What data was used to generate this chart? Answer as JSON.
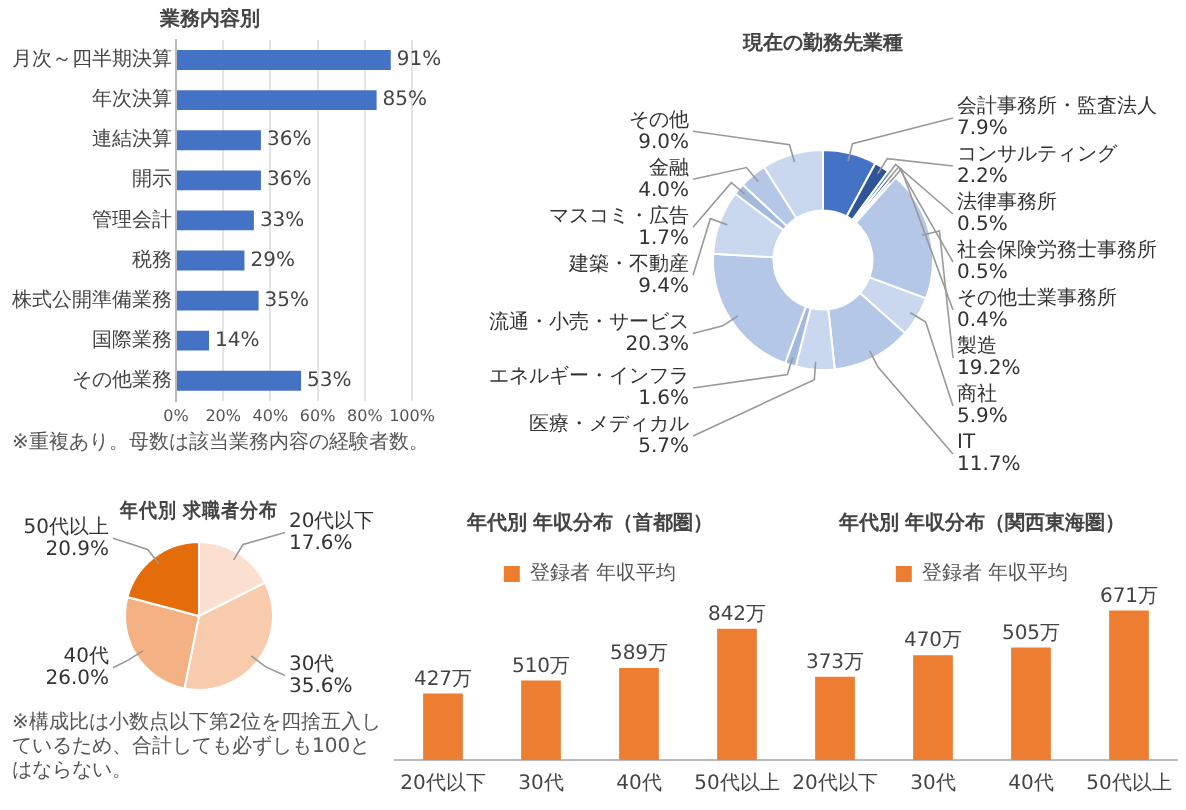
{
  "chart_data": [
    {
      "type": "bar",
      "orientation": "horizontal",
      "title": "業務内容別",
      "categories": [
        "月次～四半期決算",
        "年次決算",
        "連結決算",
        "開示",
        "管理会計",
        "税務",
        "株式公開準備業務",
        "国際業務",
        "その他業務"
      ],
      "series": [
        {
          "color": "#4472c4",
          "values": [
            91,
            85,
            36,
            36,
            33,
            29,
            35,
            14,
            53
          ],
          "value_labels": [
            "91%",
            "85%",
            "36%",
            "36%",
            "33%",
            "29%",
            "35%",
            "14%",
            "53%"
          ]
        }
      ],
      "xlim": [
        0,
        100
      ],
      "xticks": [
        {
          "value": 0,
          "label": "0%"
        },
        {
          "value": 20,
          "label": "20%"
        },
        {
          "value": 40,
          "label": "40%"
        },
        {
          "value": 60,
          "label": "60%"
        },
        {
          "value": 80,
          "label": "80%"
        },
        {
          "value": 100,
          "label": "100%"
        }
      ],
      "grid": "x",
      "annotations": [
        "※重複あり。母数は該当業務内容の経験者数。"
      ]
    },
    {
      "type": "donut",
      "title": "現在の勤務先業種",
      "categories": [
        "会計事務所・監査法人",
        "コンサルティング",
        "法律事務所",
        "社会保険労務士事務所",
        "その他士業事務所",
        "製造",
        "商社",
        "IT",
        "医療・メディカル",
        "エネルギー・インフラ",
        "流通・小売・サービス",
        "建築・不動産",
        "マスコミ・広告",
        "金融",
        "その他"
      ],
      "values": [
        7.9,
        2.2,
        0.5,
        0.5,
        0.4,
        19.2,
        5.9,
        11.7,
        5.7,
        1.6,
        20.3,
        9.4,
        1.7,
        4.0,
        9.0
      ],
      "value_labels": [
        "7.9%",
        "2.2%",
        "0.5%",
        "0.5%",
        "0.4%",
        "19.2%",
        "5.9%",
        "11.7%",
        "5.7%",
        "1.6%",
        "20.3%",
        "9.4%",
        "1.7%",
        "4.0%",
        "9.0%"
      ],
      "colors": [
        "#4472c4",
        "#2f5597",
        "#4472c4",
        "#2f5597",
        "#4472c4",
        "#b4c7e7",
        "#c9d7ef",
        "#b4c7e7",
        "#c9d7ef",
        "#a3badf",
        "#b4c7e7",
        "#c9d7ef",
        "#a3badf",
        "#b4c7e7",
        "#c9d7ef"
      ]
    },
    {
      "type": "pie",
      "title": "年代別 求職者分布",
      "categories": [
        "20代以下",
        "30代",
        "40代",
        "50代以上"
      ],
      "values": [
        17.6,
        35.6,
        26.0,
        20.9
      ],
      "value_labels": [
        "17.6%",
        "35.6%",
        "26.0%",
        "20.9%"
      ],
      "colors": [
        "#fbe0cf",
        "#f8cbad",
        "#f4b183",
        "#e46c0a"
      ],
      "annotations": [
        "※構成比は小数点以下第2位を四捨五入しているため、合計しても必ずしも100とはならない。"
      ]
    },
    {
      "type": "bar",
      "title": "年代別 年収分布（首都圏）",
      "categories": [
        "20代以下",
        "30代",
        "40代",
        "50代以上"
      ],
      "legend": "top",
      "series": [
        {
          "name": "登録者 年収平均",
          "color": "#ed7d31",
          "values": [
            427,
            510,
            589,
            842
          ],
          "value_labels": [
            "427万",
            "510万",
            "589万",
            "842万"
          ]
        }
      ]
    },
    {
      "type": "bar",
      "title": "年代別 年収分布（関西東海圏）",
      "categories": [
        "20代以下",
        "30代",
        "40代",
        "50代以上"
      ],
      "legend": "top",
      "series": [
        {
          "name": "登録者 年収平均",
          "color": "#ed7d31",
          "values": [
            373,
            470,
            505,
            671
          ],
          "value_labels": [
            "373万",
            "470万",
            "505万",
            "671万"
          ]
        }
      ]
    }
  ]
}
